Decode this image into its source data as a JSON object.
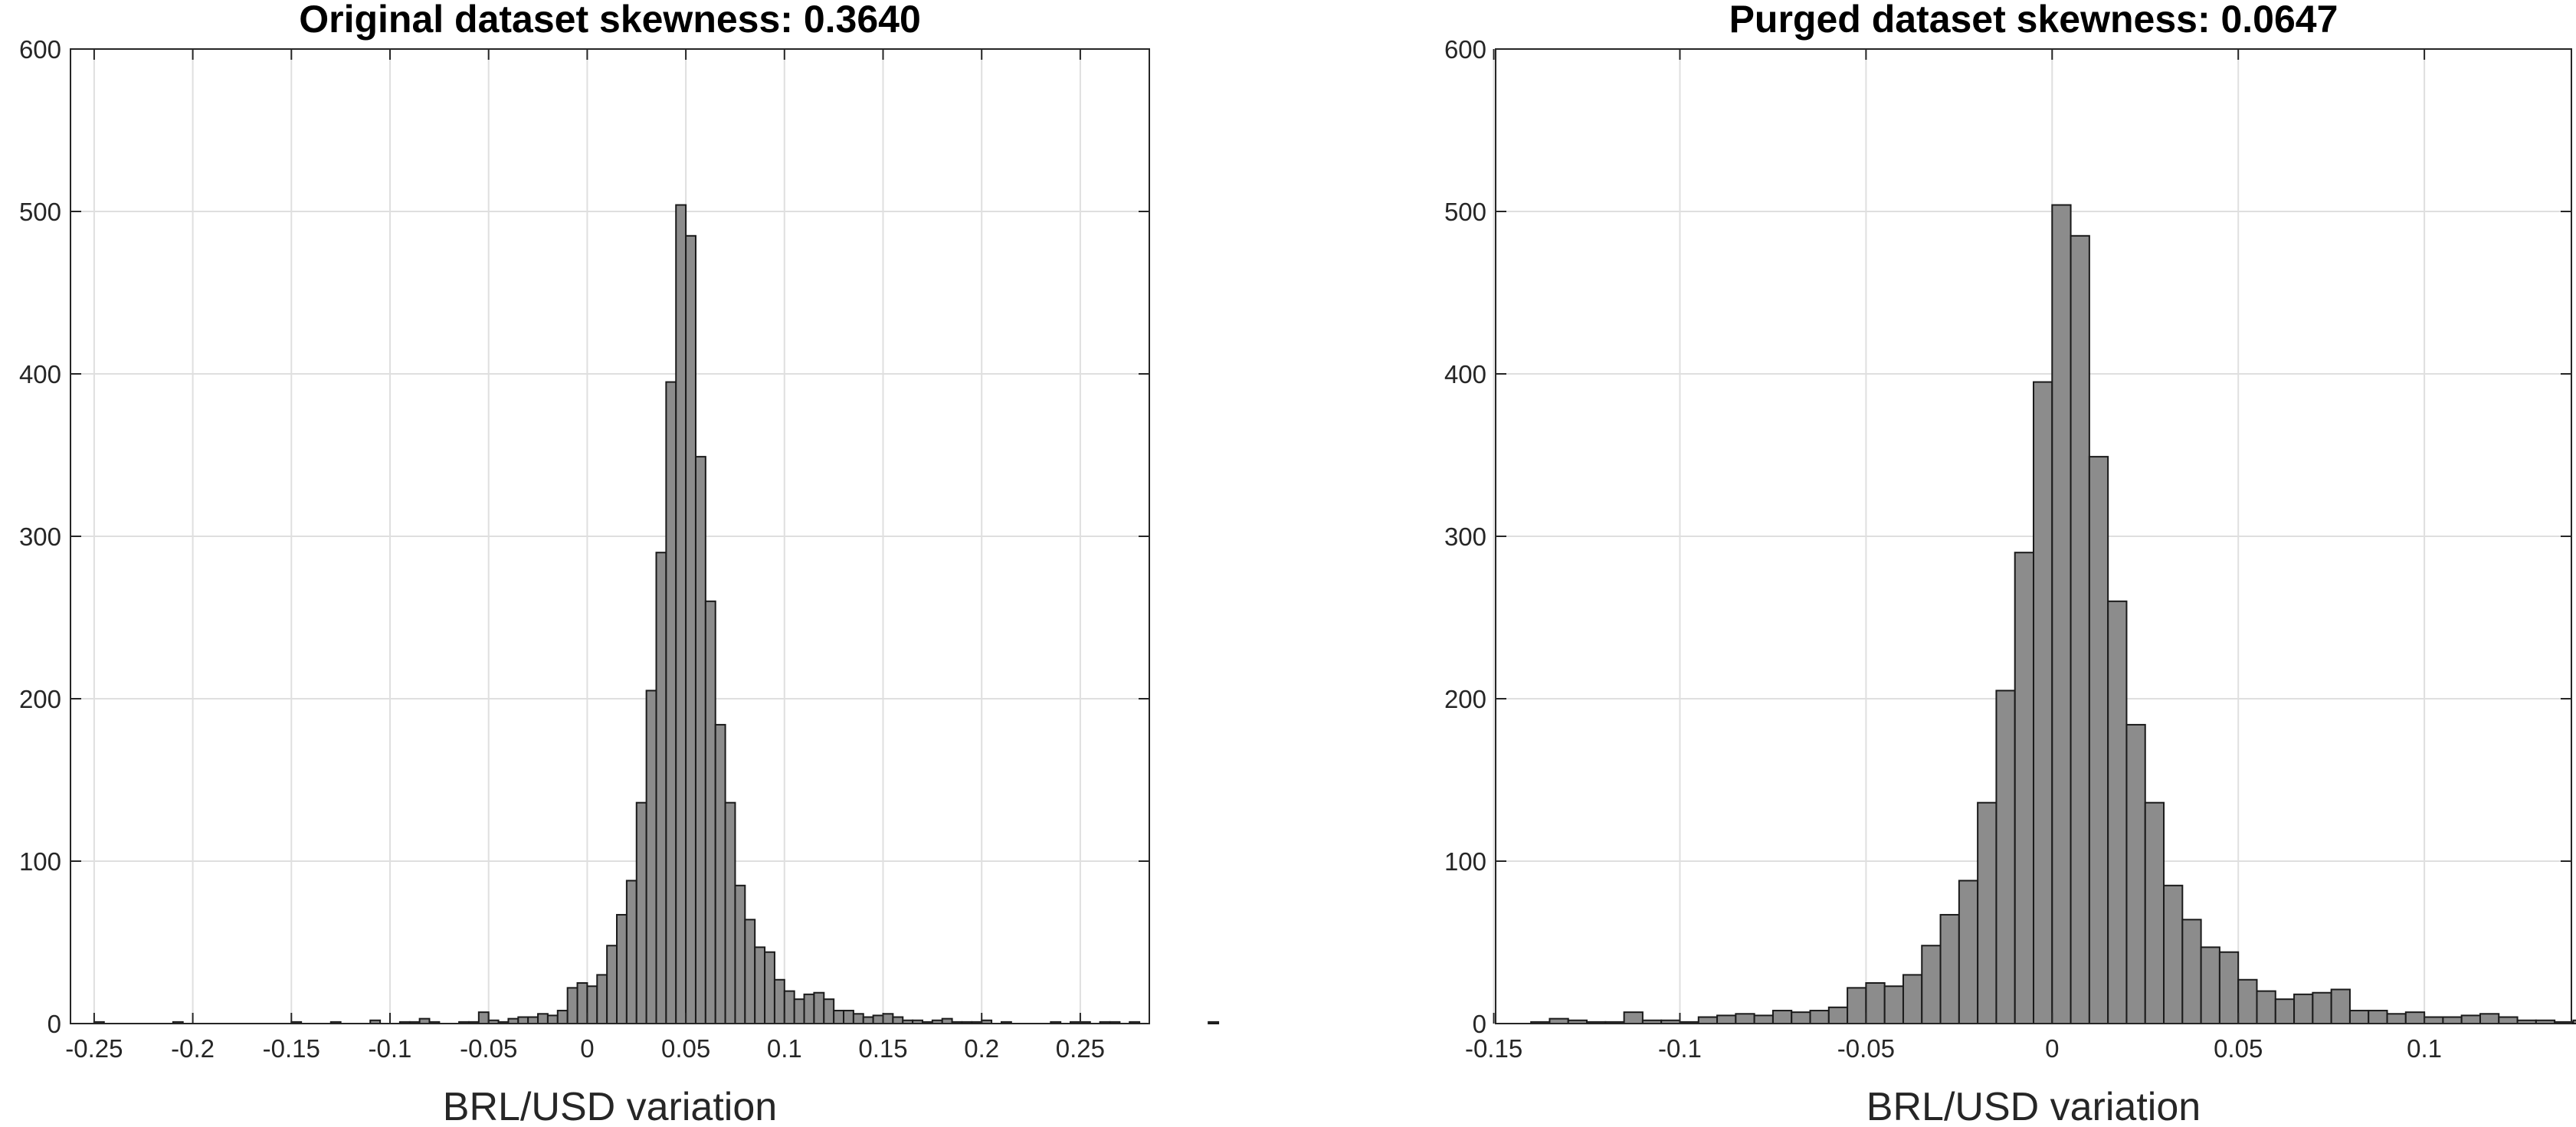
{
  "chart_data": [
    {
      "type": "bar",
      "subtype": "histogram",
      "title": "Original dataset skewness: 0.3640",
      "xlabel": "BRL/USD variation",
      "ylabel": "",
      "xlim": [
        -0.262,
        0.285
      ],
      "ylim": [
        0,
        600
      ],
      "grid": true,
      "xticks": [
        -0.25,
        -0.2,
        -0.15,
        -0.1,
        -0.05,
        0,
        0.05,
        0.1,
        0.15,
        0.2,
        0.25
      ],
      "xtick_labels": [
        "-0.25",
        "-0.2",
        "-0.15",
        "-0.1",
        "-0.05",
        "0",
        "0.05",
        "0.1",
        "0.15",
        "0.2",
        "0.25"
      ],
      "yticks": [
        0,
        100,
        200,
        300,
        400,
        500,
        600
      ],
      "ytick_labels": [
        "0",
        "100",
        "200",
        "300",
        "400",
        "500",
        "600"
      ],
      "bar_color": "#8c8c8c",
      "edge_color": "#1a1a1a",
      "bin_width": 0.005,
      "bin_start": -0.25,
      "counts": [
        1,
        0,
        0,
        0,
        0,
        0,
        0,
        0,
        1,
        0,
        0,
        0,
        0,
        0,
        0,
        0,
        0,
        0,
        0,
        0,
        1,
        0,
        0,
        0,
        1,
        0,
        0,
        0,
        2,
        0,
        0,
        1,
        1,
        3,
        1,
        0,
        0,
        1,
        1,
        7,
        2,
        1,
        3,
        4,
        4,
        6,
        5,
        8,
        22,
        25,
        23,
        30,
        48,
        67,
        88,
        136,
        205,
        290,
        395,
        504,
        485,
        349,
        260,
        184,
        136,
        85,
        64,
        47,
        44,
        27,
        20,
        15,
        18,
        19,
        15,
        8,
        8,
        6,
        4,
        5,
        6,
        4,
        2,
        2,
        1,
        2,
        3,
        1,
        1,
        1,
        2,
        0,
        1,
        0,
        0,
        0,
        0,
        1,
        0,
        1,
        1,
        0,
        1,
        1,
        0,
        1,
        0,
        0,
        0,
        0,
        0,
        0,
        0,
        1
      ]
    },
    {
      "type": "bar",
      "subtype": "histogram",
      "title": "Purged dataset skewness: 0.0647",
      "xlabel": "BRL/USD variation",
      "ylabel": "",
      "xlim": [
        -0.1495,
        0.1395
      ],
      "ylim": [
        0,
        600
      ],
      "grid": true,
      "xticks": [
        -0.15,
        -0.1,
        -0.05,
        0,
        0.05,
        0.1
      ],
      "xtick_labels": [
        "-0.15",
        "-0.1",
        "-0.05",
        "0",
        "0.05",
        "0.1"
      ],
      "yticks": [
        0,
        100,
        200,
        300,
        400,
        500,
        600
      ],
      "ytick_labels": [
        "0",
        "100",
        "200",
        "300",
        "400",
        "500",
        "600"
      ],
      "bar_color": "#8c8c8c",
      "edge_color": "#1a1a1a",
      "bin_width": 0.005,
      "bin_start": -0.14,
      "counts": [
        1,
        3,
        2,
        1,
        1,
        7,
        2,
        2,
        1,
        4,
        5,
        6,
        5,
        8,
        7,
        8,
        10,
        22,
        25,
        23,
        30,
        48,
        67,
        88,
        136,
        205,
        290,
        395,
        504,
        485,
        349,
        260,
        184,
        136,
        85,
        64,
        47,
        44,
        27,
        20,
        15,
        18,
        19,
        21,
        8,
        8,
        6,
        7,
        4,
        4,
        5,
        6,
        4,
        2,
        2,
        1,
        2,
        2,
        3
      ]
    }
  ]
}
